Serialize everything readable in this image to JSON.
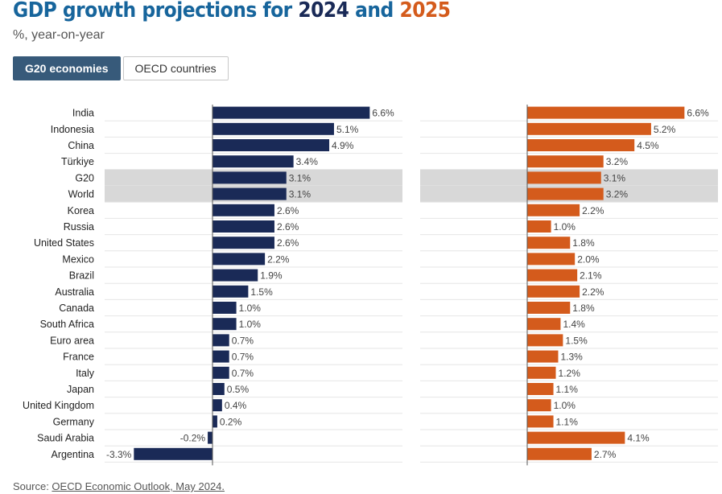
{
  "header": {
    "title_prefix": "GDP growth projections for ",
    "title_year1": "2024",
    "title_and": " and ",
    "title_year2": "2025",
    "subtitle": "%, year-on-year"
  },
  "tabs": [
    {
      "label": "G20 economies",
      "active": true
    },
    {
      "label": "OECD countries",
      "active": false
    }
  ],
  "colors": {
    "series_2024": "#1a2a57",
    "series_2025": "#d45b1c",
    "highlight_band": "#d8d8d8",
    "title_blue": "#17659c"
  },
  "chart_data": {
    "type": "bar",
    "orientation": "horizontal",
    "title": "GDP growth projections for 2024 and 2025",
    "unit": "%, year-on-year",
    "categories": [
      "India",
      "Indonesia",
      "China",
      "Türkiye",
      "G20",
      "World",
      "Korea",
      "Russia",
      "United States",
      "Mexico",
      "Brazil",
      "Australia",
      "Canada",
      "South Africa",
      "Euro area",
      "France",
      "Italy",
      "Japan",
      "United Kingdom",
      "Germany",
      "Saudi Arabia",
      "Argentina"
    ],
    "highlighted": [
      "G20",
      "World"
    ],
    "series": [
      {
        "name": "2024",
        "values": [
          6.6,
          5.1,
          4.9,
          3.4,
          3.1,
          3.1,
          2.6,
          2.6,
          2.6,
          2.2,
          1.9,
          1.5,
          1.0,
          1.0,
          0.7,
          0.7,
          0.7,
          0.5,
          0.4,
          0.2,
          -0.2,
          -3.3
        ]
      },
      {
        "name": "2025",
        "values": [
          6.6,
          5.2,
          4.5,
          3.2,
          3.1,
          3.2,
          2.2,
          1.0,
          1.8,
          2.0,
          2.1,
          2.2,
          1.8,
          1.4,
          1.5,
          1.3,
          1.2,
          1.1,
          1.0,
          1.1,
          4.1,
          2.7
        ]
      }
    ],
    "value_labels_2024": [
      "6.6%",
      "5.1%",
      "4.9%",
      "3.4%",
      "3.1%",
      "3.1%",
      "2.6%",
      "2.6%",
      "2.6%",
      "2.2%",
      "1.9%",
      "1.5%",
      "1.0%",
      "1.0%",
      "0.7%",
      "0.7%",
      "0.7%",
      "0.5%",
      "0.4%",
      "0.2%",
      "-0.2%",
      "-3.3%"
    ],
    "value_labels_2025": [
      "6.6%",
      "5.2%",
      "4.5%",
      "3.2%",
      "3.1%",
      "3.2%",
      "2.2%",
      "1.0%",
      "1.8%",
      "2.0%",
      "2.1%",
      "2.2%",
      "1.8%",
      "1.4%",
      "1.5%",
      "1.3%",
      "1.2%",
      "1.1%",
      "1.0%",
      "1.1%",
      "4.1%",
      "2.7%"
    ]
  },
  "footer": {
    "source_prefix": "Source: ",
    "source_link": "OECD Economic Outlook, May 2024."
  }
}
